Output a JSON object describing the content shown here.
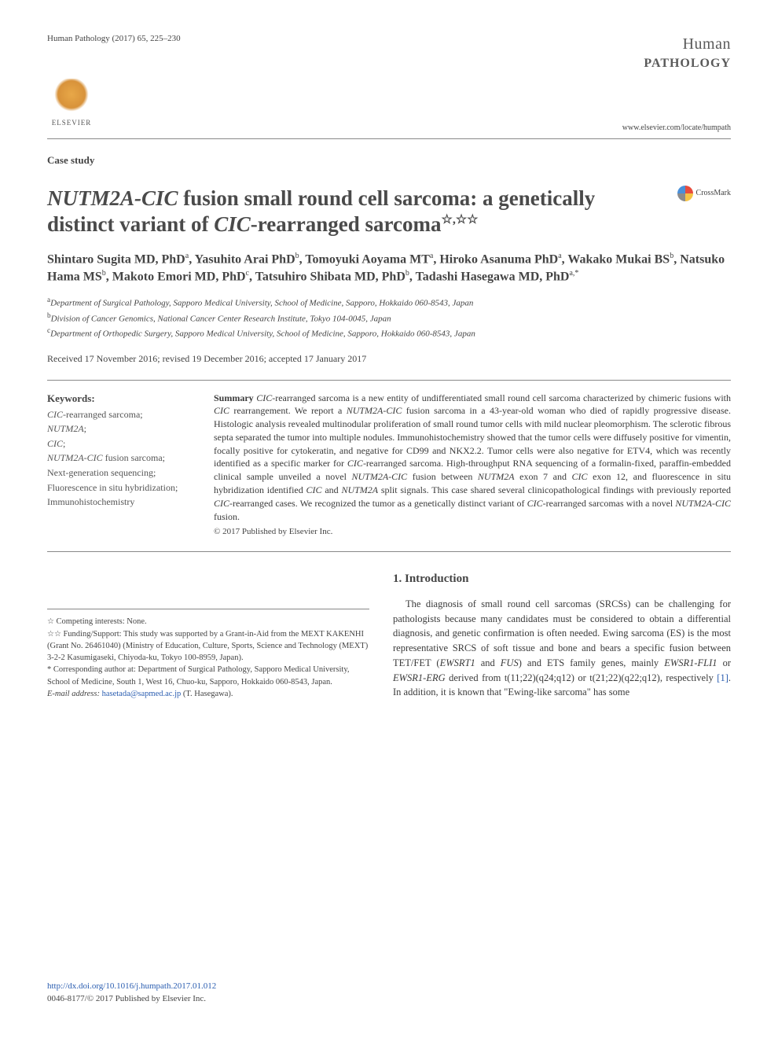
{
  "header": {
    "citation": "Human Pathology (2017) 65, 225–230",
    "journal_name": "Human",
    "journal_sub": "PATHOLOGY",
    "journal_url": "www.elsevier.com/locate/humpath",
    "publisher": "ELSEVIER"
  },
  "section_label": "Case study",
  "title": {
    "part1": "NUTM2A-CIC",
    "part2": " fusion small round cell sarcoma: a genetically distinct variant of ",
    "part3": "CIC",
    "part4": "-rearranged sarcoma",
    "stars": "☆,☆☆"
  },
  "crossmark": "CrossMark",
  "authors_html": "Shintaro Sugita MD, PhD<sup>a</sup>, Yasuhito Arai PhD<sup>b</sup>, Tomoyuki Aoyama MT<sup>a</sup>, Hiroko Asanuma PhD<sup>a</sup>, Wakako Mukai BS<sup>b</sup>, Natsuko Hama MS<sup>b</sup>, Makoto Emori MD, PhD<sup>c</sup>, Tatsuhiro Shibata MD, PhD<sup>b</sup>, Tadashi Hasegawa MD, PhD<sup>a,*</sup>",
  "affiliations": [
    "Department of Surgical Pathology, Sapporo Medical University, School of Medicine, Sapporo, Hokkaido 060-8543, Japan",
    "Division of Cancer Genomics, National Cancer Center Research Institute, Tokyo 104-0045, Japan",
    "Department of Orthopedic Surgery, Sapporo Medical University, School of Medicine, Sapporo, Hokkaido 060-8543, Japan"
  ],
  "aff_sup": [
    "a",
    "b",
    "c"
  ],
  "dates": "Received 17 November 2016; revised 19 December 2016; accepted 17 January 2017",
  "keywords": {
    "head": "Keywords:",
    "items": "CIC-rearranged sarcoma;\nNUTM2A;\nCIC;\nNUTM2A-CIC fusion sarcoma;\nNext-generation sequencing;\nFluorescence in situ hybridization;\nImmunohistochemistry"
  },
  "summary": {
    "label": "Summary",
    "text": " CIC-rearranged sarcoma is a new entity of undifferentiated small round cell sarcoma characterized by chimeric fusions with CIC rearrangement. We report a NUTM2A-CIC fusion sarcoma in a 43-year-old woman who died of rapidly progressive disease. Histologic analysis revealed multinodular proliferation of small round tumor cells with mild nuclear pleomorphism. The sclerotic fibrous septa separated the tumor into multiple nodules. Immunohistochemistry showed that the tumor cells were diffusely positive for vimentin, focally positive for cytokeratin, and negative for CD99 and NKX2.2. Tumor cells were also negative for ETV4, which was recently identified as a specific marker for CIC-rearranged sarcoma. High-throughput RNA sequencing of a formalin-fixed, paraffin-embedded clinical sample unveiled a novel NUTM2A-CIC fusion between NUTM2A exon 7 and CIC exon 12, and fluorescence in situ hybridization identified CIC and NUTM2A split signals. This case shared several clinicopathological findings with previously reported CIC-rearranged cases. We recognized the tumor as a genetically distinct variant of CIC-rearranged sarcomas with a novel NUTM2A-CIC fusion.",
    "copyright": "© 2017 Published by Elsevier Inc."
  },
  "footnotes": {
    "f1": "Competing interests: None.",
    "f2": "Funding/Support: This study was supported by a Grant-in-Aid from the MEXT KAKENHI (Grant No. 26461040) (Ministry of Education, Culture, Sports, Science and Technology (MEXT) 3-2-2 Kasumigaseki, Chiyoda-ku, Tokyo 100-8959, Japan).",
    "f3": "* Corresponding author at: Department of Surgical Pathology, Sapporo Medical University, School of Medicine, South 1, West 16, Chuo-ku, Sapporo, Hokkaido 060-8543, Japan.",
    "email_label": "E-mail address:",
    "email": "hasetada@sapmed.ac.jp",
    "email_suffix": " (T. Hasegawa)."
  },
  "intro": {
    "head": "1. Introduction",
    "body": "The diagnosis of small round cell sarcomas (SRCSs) can be challenging for pathologists because many candidates must be considered to obtain a differential diagnosis, and genetic confirmation is often needed. Ewing sarcoma (ES) is the most representative SRCS of soft tissue and bone and bears a specific fusion between TET/FET (EWSRT1 and FUS) and ETS family genes, mainly EWSR1-FLI1 or EWSR1-ERG derived from t(11;22)(q24;q12) or t(21;22)(q22;q12), respectively [1]. In addition, it is known that \"Ewing-like sarcoma\" has some"
  },
  "footer": {
    "doi": "http://dx.doi.org/10.1016/j.humpath.2017.01.012",
    "issn": "0046-8177/© 2017 Published by Elsevier Inc."
  },
  "colors": {
    "text": "#3a3a3a",
    "gray": "#5a5a5a",
    "link": "#2a5db0",
    "rule": "#888888"
  }
}
